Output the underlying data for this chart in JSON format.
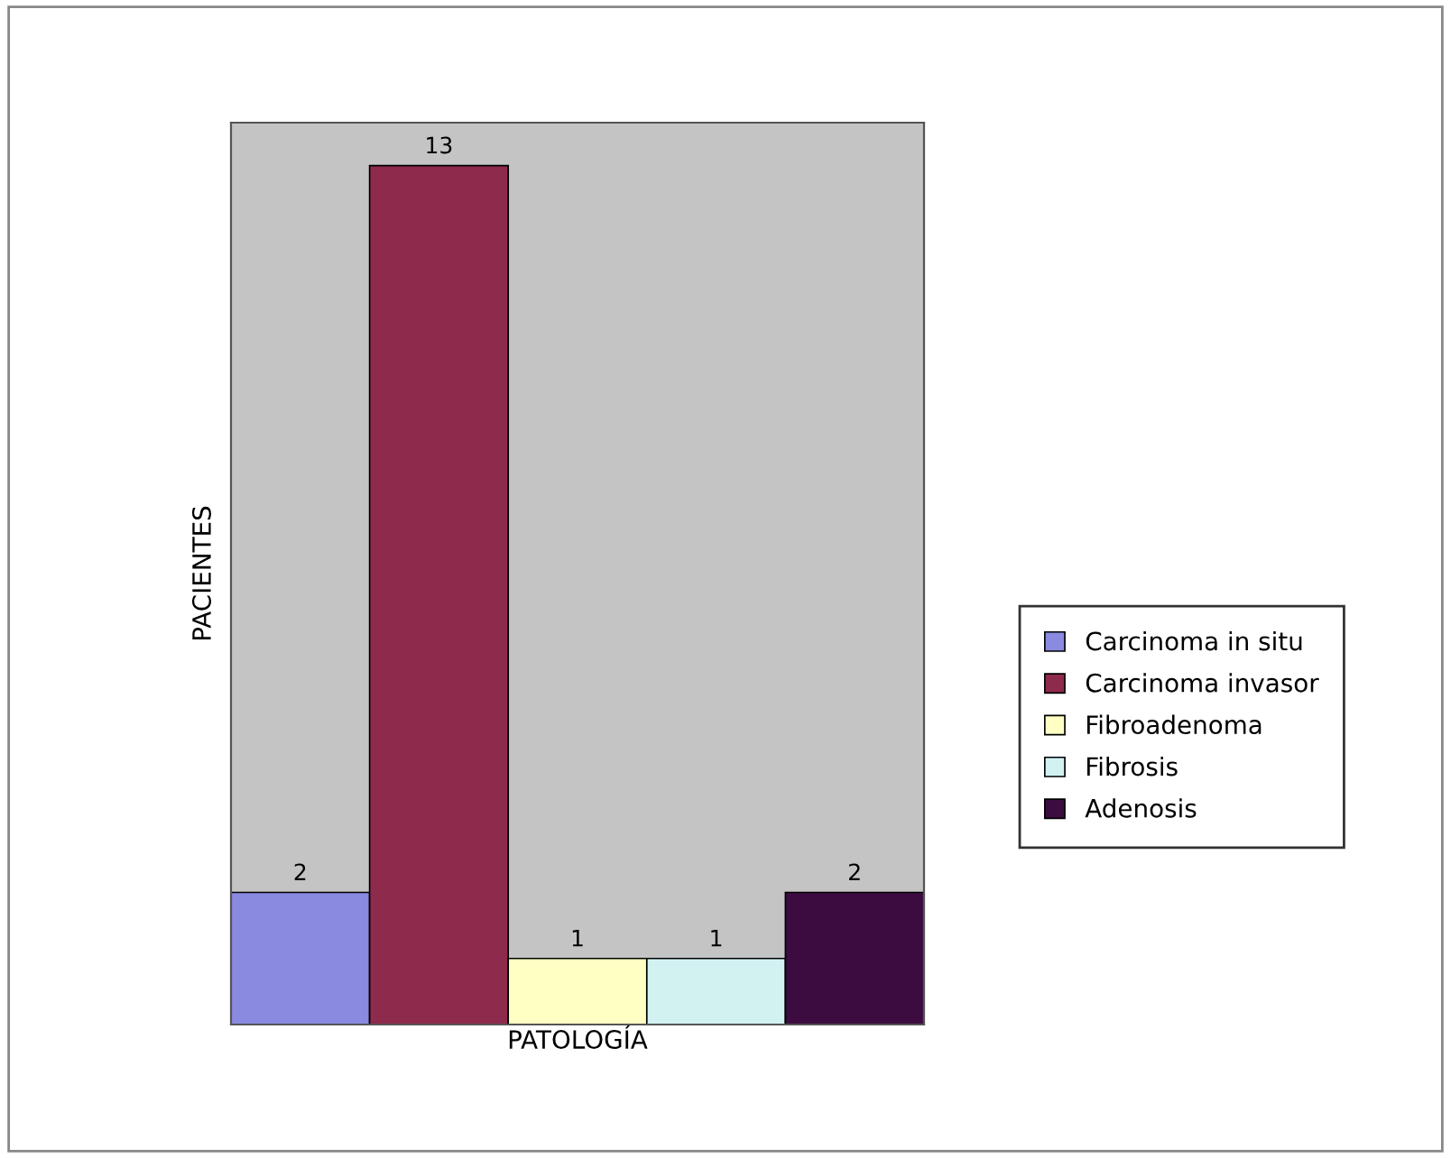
{
  "chart_data": {
    "type": "bar",
    "xlabel": "PATOLOGÍA",
    "ylabel": "PACIENTES",
    "categories": [
      null
    ],
    "series": [
      {
        "name": "Carcinoma in situ",
        "color": "#8a8ae0",
        "values": [
          2
        ]
      },
      {
        "name": "Carcinoma invasor",
        "color": "#8e2a4c",
        "values": [
          13
        ]
      },
      {
        "name": "Fibroadenoma",
        "color": "#ffffc4",
        "values": [
          1
        ]
      },
      {
        "name": "Fibrosis",
        "color": "#d2f2f2",
        "values": [
          1
        ]
      },
      {
        "name": "Adenosis",
        "color": "#3c0c40",
        "values": [
          2
        ]
      }
    ],
    "data_labels": true,
    "legend": "right",
    "tick_labels": false,
    "grid": false
  }
}
